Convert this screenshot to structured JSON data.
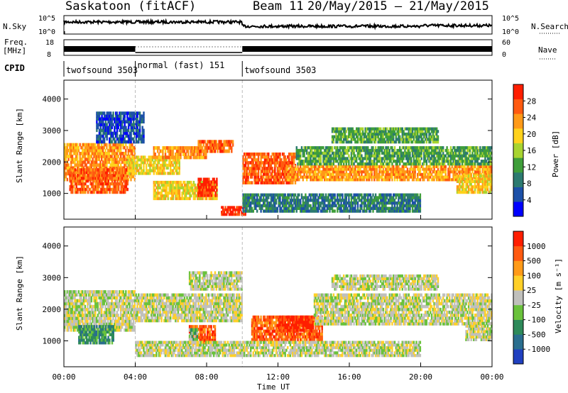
{
  "header": {
    "site": "Saskatoon (fitACF)",
    "beam": "Beam 11",
    "dates": "20/May/2015 – 21/May/2015"
  },
  "strip_labels": {
    "nsky": "N.Sky",
    "nsearch": "N.Search",
    "freq_line1": "Freq.",
    "freq_line2": "[MHz]",
    "nave": "Nave",
    "cpid": "CPID"
  },
  "noise_axis": {
    "left_top": "10^5",
    "left_bottom": "10^0",
    "right_top": "10^5",
    "right_bottom": "10^0"
  },
  "freq_axis": {
    "left_top": "18",
    "left_bottom": "8",
    "right_top": "60",
    "right_bottom": "0"
  },
  "cpid_segments": [
    {
      "label": "twofsound 3503",
      "start_h": 0,
      "end_h": 4
    },
    {
      "label": "normal (fast) 151",
      "start_h": 4,
      "end_h": 10
    },
    {
      "label": "twofsound 3503",
      "start_h": 10,
      "end_h": 24
    }
  ],
  "chart_data": [
    {
      "type": "heatmap",
      "ylabel": "Slant Range [km]",
      "yticks": [
        1000,
        2000,
        3000,
        4000
      ],
      "ylim": [
        180,
        4600
      ],
      "xlim": [
        0,
        24
      ],
      "colorbar": {
        "label": "Power [dB]",
        "ticks": [
          "4",
          "8",
          "12",
          "16",
          "20",
          "24",
          "28"
        ],
        "colors": [
          "#0000ff",
          "#1c50a8",
          "#2c7a70",
          "#3f9e3a",
          "#a8d430",
          "#ffd21c",
          "#ff9a18",
          "#ff5a10",
          "#ff1e00"
        ]
      },
      "bands": [
        {
          "x0": 0.0,
          "x1": 4.0,
          "y0": 1400,
          "y1": 2600,
          "level": 6
        },
        {
          "x0": 0.3,
          "x1": 3.6,
          "y0": 1000,
          "y1": 1800,
          "level": 7
        },
        {
          "x0": 3.5,
          "x1": 6.5,
          "y0": 1600,
          "y1": 2200,
          "level": 5
        },
        {
          "x0": 5.0,
          "x1": 8.0,
          "y0": 2100,
          "y1": 2500,
          "level": 6
        },
        {
          "x0": 7.5,
          "x1": 9.5,
          "y0": 2300,
          "y1": 2700,
          "level": 7
        },
        {
          "x0": 5.0,
          "x1": 8.6,
          "y0": 800,
          "y1": 1400,
          "level": 5
        },
        {
          "x0": 7.5,
          "x1": 8.6,
          "y0": 900,
          "y1": 1500,
          "level": 8
        },
        {
          "x0": 8.8,
          "x1": 10.2,
          "y0": 300,
          "y1": 600,
          "level": 8
        },
        {
          "x0": 10.0,
          "x1": 13.0,
          "y0": 1300,
          "y1": 2300,
          "level": 7
        },
        {
          "x0": 12.5,
          "x1": 24.0,
          "y0": 1400,
          "y1": 1900,
          "level": 6
        },
        {
          "x0": 13.0,
          "x1": 24.0,
          "y0": 1900,
          "y1": 2500,
          "level": 3
        },
        {
          "x0": 15.0,
          "x1": 21.0,
          "y0": 2600,
          "y1": 3100,
          "level": 3
        },
        {
          "x0": 10.0,
          "x1": 20.0,
          "y0": 400,
          "y1": 1000,
          "level": 2
        },
        {
          "x0": 1.8,
          "x1": 4.5,
          "y0": 2600,
          "y1": 3600,
          "level": 1
        },
        {
          "x0": 22.0,
          "x1": 24.0,
          "y0": 1000,
          "y1": 1600,
          "level": 5
        }
      ]
    },
    {
      "type": "heatmap",
      "ylabel": "Slant Range [km]",
      "yticks": [
        1000,
        2000,
        3000,
        4000
      ],
      "ylim": [
        180,
        4600
      ],
      "xlim": [
        0,
        24
      ],
      "xticks": [
        "00:00",
        "04:00",
        "08:00",
        "12:00",
        "16:00",
        "20:00",
        "00:00"
      ],
      "xlabel": "Time UT",
      "colorbar": {
        "label": "Velocity [m s⁻¹]",
        "ticks": [
          "1000",
          "500",
          "100",
          "25",
          "-25",
          "-100",
          "-500",
          "-1000"
        ],
        "colors": [
          "#2040c0",
          "#2a6e8e",
          "#2e8a5a",
          "#6ac23c",
          "#c0c0bc",
          "#ffd028",
          "#ff9a18",
          "#ff5a10",
          "#ff1e00"
        ]
      },
      "bands": [
        {
          "x0": 0.0,
          "x1": 4.0,
          "y0": 1300,
          "y1": 2600,
          "level": 4
        },
        {
          "x0": 0.8,
          "x1": 2.8,
          "y0": 900,
          "y1": 1500,
          "level": 2
        },
        {
          "x0": 4.0,
          "x1": 10.0,
          "y0": 1600,
          "y1": 2500,
          "level": 4
        },
        {
          "x0": 7.0,
          "x1": 10.0,
          "y0": 2600,
          "y1": 3200,
          "level": 4
        },
        {
          "x0": 7.0,
          "x1": 8.5,
          "y0": 900,
          "y1": 1500,
          "level": 7
        },
        {
          "x0": 7.0,
          "x1": 7.5,
          "y0": 1000,
          "y1": 1400,
          "level": 3
        },
        {
          "x0": 10.5,
          "x1": 14.5,
          "y0": 1000,
          "y1": 1800,
          "level": 7
        },
        {
          "x0": 12.0,
          "x1": 14.0,
          "y0": 1300,
          "y1": 1800,
          "level": 8
        },
        {
          "x0": 14.0,
          "x1": 24.0,
          "y0": 1500,
          "y1": 2500,
          "level": 4
        },
        {
          "x0": 10.0,
          "x1": 20.0,
          "y0": 500,
          "y1": 1000,
          "level": 4
        },
        {
          "x0": 4.0,
          "x1": 10.0,
          "y0": 500,
          "y1": 1000,
          "level": 4
        },
        {
          "x0": 15.0,
          "x1": 21.0,
          "y0": 2600,
          "y1": 3100,
          "level": 4
        },
        {
          "x0": 22.5,
          "x1": 24.0,
          "y0": 1000,
          "y1": 1600,
          "level": 4
        }
      ]
    }
  ]
}
